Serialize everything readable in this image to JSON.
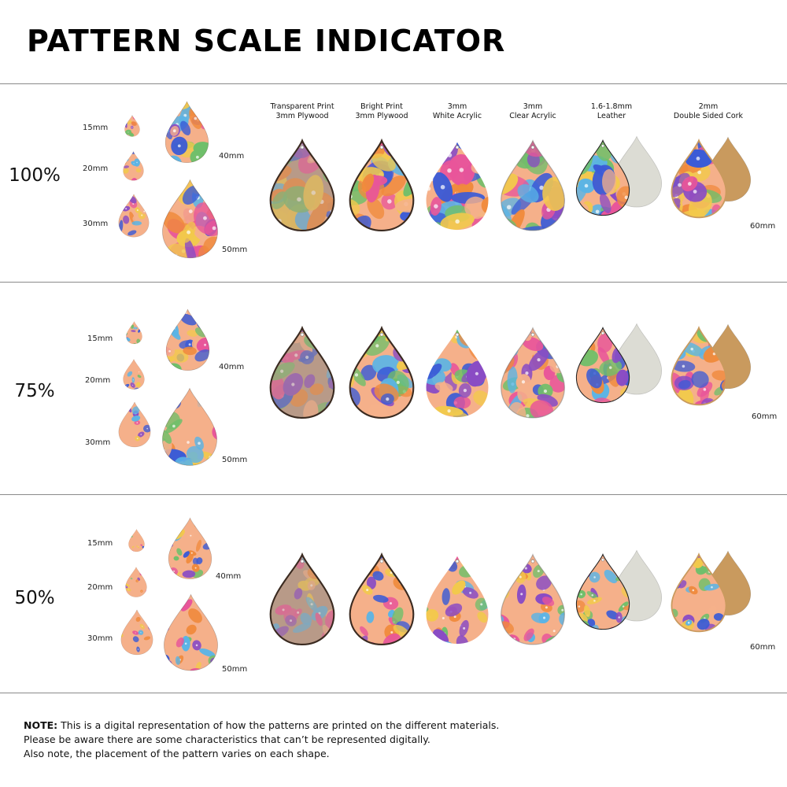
{
  "title": "PATTERN SCALE INDICATOR",
  "materials": [
    {
      "line1": "Transparent Print",
      "line2": "3mm Plywood"
    },
    {
      "line1": "Bright Print",
      "line2": "3mm Plywood"
    },
    {
      "line1": "3mm",
      "line2": "White Acrylic"
    },
    {
      "line1": "3mm",
      "line2": "Clear Acrylic"
    },
    {
      "line1": "1.6-1.8mm",
      "line2": "Leather"
    },
    {
      "line1": "2mm",
      "line2": "Double Sided Cork"
    }
  ],
  "sections": [
    {
      "scale": "100%",
      "sizes": {
        "s15": "15mm",
        "s20": "20mm",
        "s30": "30mm",
        "s40": "40mm",
        "s50": "50mm",
        "s60": "60mm"
      }
    },
    {
      "scale": "75%",
      "sizes": {
        "s15": "15mm",
        "s20": "20mm",
        "s30": "30mm",
        "s40": "40mm",
        "s50": "50mm",
        "s60": "60mm"
      }
    },
    {
      "scale": "50%",
      "sizes": {
        "s15": "15mm",
        "s20": "20mm",
        "s30": "30mm",
        "s40": "40mm",
        "s50": "50mm",
        "s60": "60mm"
      }
    }
  ],
  "note": {
    "label": "NOTE:",
    "line1": "This is a digital representation of how the patterns are printed on the different materials.",
    "line2": "Please be aware there are some characteristics that can’t be represented digitally.",
    "line3": "Also note, the placement of the pattern varies on each shape."
  },
  "colors": {
    "pink": "#e8559a",
    "orange": "#f08a3c",
    "blue": "#3b5bd6",
    "sky": "#5ab4e6",
    "purple": "#8a4cc4",
    "peach": "#f5b08a",
    "green": "#6fbf6a",
    "yellow": "#f2c94c",
    "plywood_edge": "#3a2a20",
    "leather_back": "#dcdcd4",
    "cork_back": "#c99a5e"
  }
}
